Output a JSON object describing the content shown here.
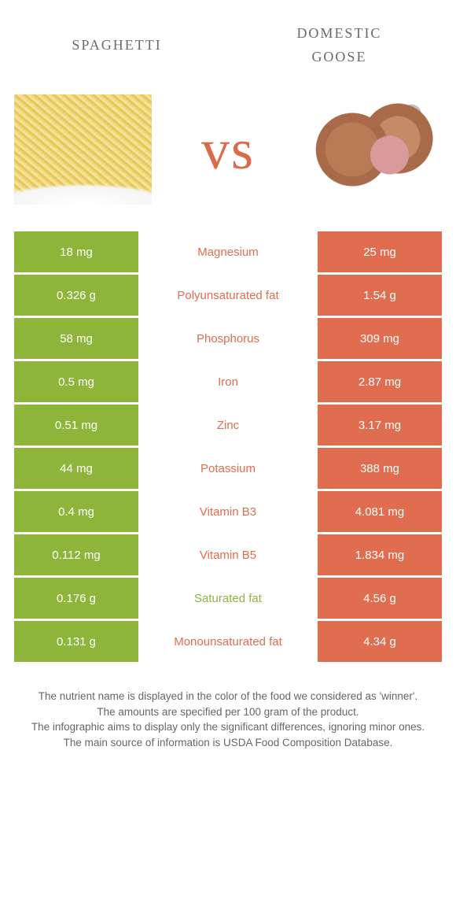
{
  "colors": {
    "left": "#8fb43a",
    "right": "#e06d4f",
    "mid_left_text": "#8fb43a",
    "mid_right_text": "#e06d4f",
    "vs": "#da6a48",
    "title": "#6a6a6a",
    "notes": "#666666"
  },
  "titles": {
    "left": "spaghetti",
    "right_line1": "domestic",
    "right_line2": "goose"
  },
  "vs_label": "vs",
  "rows": [
    {
      "left": "18 mg",
      "label": "Magnesium",
      "right": "25 mg",
      "winner": "right"
    },
    {
      "left": "0.326 g",
      "label": "Polyunsaturated fat",
      "right": "1.54 g",
      "winner": "right"
    },
    {
      "left": "58 mg",
      "label": "Phosphorus",
      "right": "309 mg",
      "winner": "right"
    },
    {
      "left": "0.5 mg",
      "label": "Iron",
      "right": "2.87 mg",
      "winner": "right"
    },
    {
      "left": "0.51 mg",
      "label": "Zinc",
      "right": "3.17 mg",
      "winner": "right"
    },
    {
      "left": "44 mg",
      "label": "Potassium",
      "right": "388 mg",
      "winner": "right"
    },
    {
      "left": "0.4 mg",
      "label": "Vitamin B3",
      "right": "4.081 mg",
      "winner": "right"
    },
    {
      "left": "0.112 mg",
      "label": "Vitamin B5",
      "right": "1.834 mg",
      "winner": "right"
    },
    {
      "left": "0.176 g",
      "label": "Saturated fat",
      "right": "4.56 g",
      "winner": "left"
    },
    {
      "left": "0.131 g",
      "label": "Monounsaturated fat",
      "right": "4.34 g",
      "winner": "right"
    }
  ],
  "notes": [
    "The nutrient name is displayed in the color of the food we considered as 'winner'.",
    "The amounts are specified per 100 gram of the product.",
    "The infographic aims to display only the significant differences, ignoring minor ones.",
    "The main source of information is USDA Food Composition Database."
  ]
}
